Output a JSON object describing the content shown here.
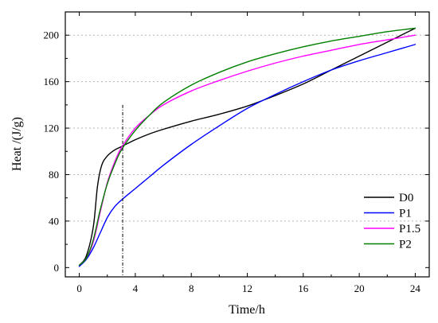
{
  "chart_data": {
    "type": "line",
    "xlabel": "Time/h",
    "ylabel": "Heat /(J/g)",
    "xlim": [
      -1,
      25
    ],
    "ylim": [
      -8,
      220
    ],
    "xticks": [
      0,
      4,
      8,
      12,
      16,
      20,
      24
    ],
    "yticks": [
      0,
      40,
      80,
      120,
      160,
      200
    ],
    "grid": "horizontal dashed",
    "legend_position": "bottom-right",
    "reference_line_x": 3.1,
    "series": [
      {
        "name": "D0",
        "color": "#000000",
        "x": [
          0,
          0.5,
          1.0,
          1.3,
          1.6,
          2.0,
          2.5,
          3.0,
          4,
          5,
          6,
          8,
          10,
          12,
          14,
          16,
          18,
          20,
          22,
          24
        ],
        "y": [
          2,
          10,
          35,
          70,
          88,
          96,
          101,
          104,
          110,
          115,
          119,
          126,
          132,
          139,
          148,
          158,
          170,
          182,
          194,
          206
        ]
      },
      {
        "name": "P1",
        "color": "#0000ff",
        "x": [
          0,
          0.5,
          1.0,
          1.5,
          2.0,
          2.5,
          3.0,
          4,
          5,
          6,
          8,
          10,
          12,
          14,
          16,
          18,
          20,
          22,
          24
        ],
        "y": [
          1,
          7,
          17,
          30,
          43,
          52,
          58,
          68,
          78,
          88,
          106,
          122,
          137,
          149,
          160,
          170,
          178,
          185,
          192
        ]
      },
      {
        "name": "P1.5",
        "color": "#ff00ff",
        "x": [
          0,
          0.5,
          1.0,
          1.5,
          2.0,
          2.5,
          3.0,
          4,
          5,
          6,
          8,
          10,
          12,
          14,
          16,
          18,
          20,
          22,
          24
        ],
        "y": [
          2,
          8,
          22,
          48,
          73,
          90,
          103,
          120,
          131,
          140,
          152,
          161,
          169,
          176,
          182,
          187,
          192,
          196,
          200
        ]
      },
      {
        "name": "P2",
        "color": "#008000",
        "x": [
          0,
          0.5,
          1.0,
          1.5,
          2.0,
          2.5,
          3.0,
          4,
          5,
          6,
          8,
          10,
          12,
          14,
          16,
          18,
          20,
          22,
          24
        ],
        "y": [
          2,
          8,
          24,
          50,
          72,
          88,
          101,
          118,
          131,
          142,
          157,
          168,
          177,
          184,
          190,
          195,
          199,
          203,
          206
        ]
      }
    ]
  }
}
